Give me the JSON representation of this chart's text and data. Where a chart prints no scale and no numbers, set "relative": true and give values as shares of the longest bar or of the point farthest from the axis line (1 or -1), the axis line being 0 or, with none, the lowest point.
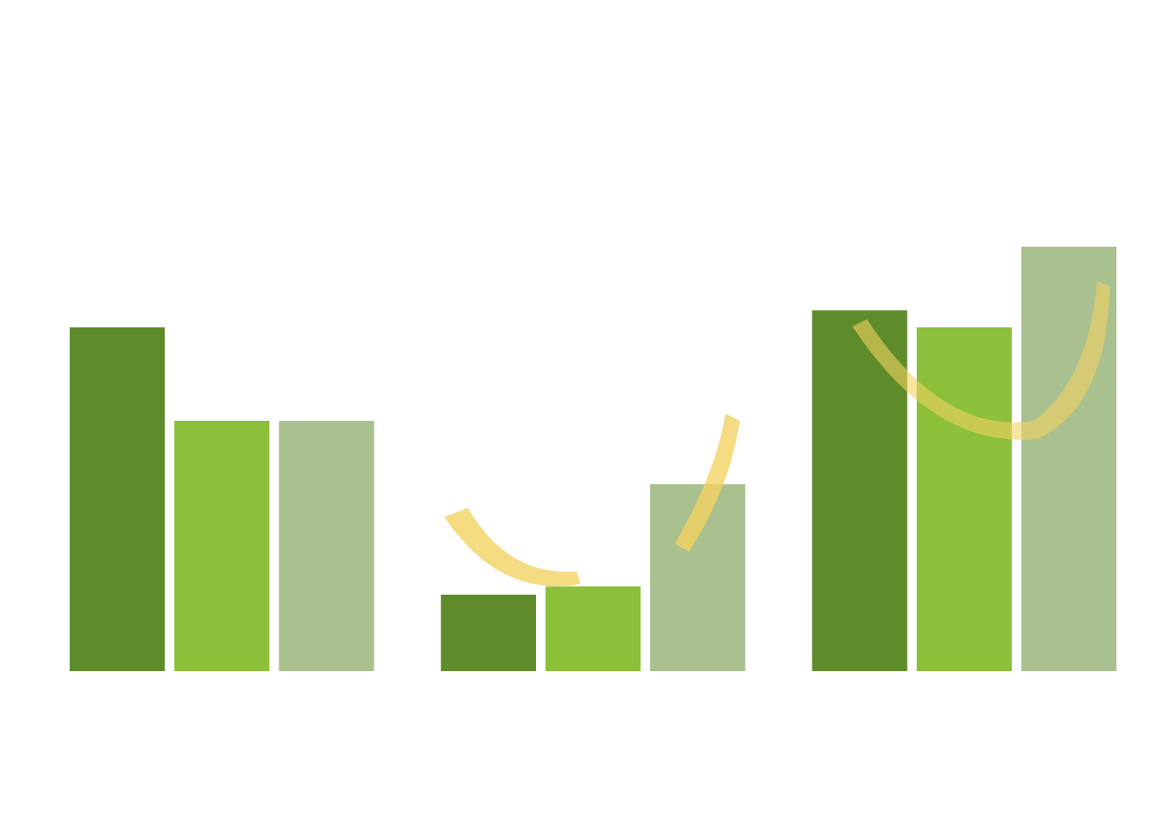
{
  "chart_data": {
    "type": "bar",
    "relative": true,
    "categories": [
      null,
      null,
      null
    ],
    "series": [
      {
        "color": "#5e8c2a",
        "values": [
          0.81,
          0.18,
          0.85
        ]
      },
      {
        "color": "#8cbf3a",
        "values": [
          0.59,
          0.2,
          0.81
        ]
      },
      {
        "color": "#a9c08f",
        "values": [
          0.59,
          0.44,
          1
        ]
      }
    ]
  }
}
